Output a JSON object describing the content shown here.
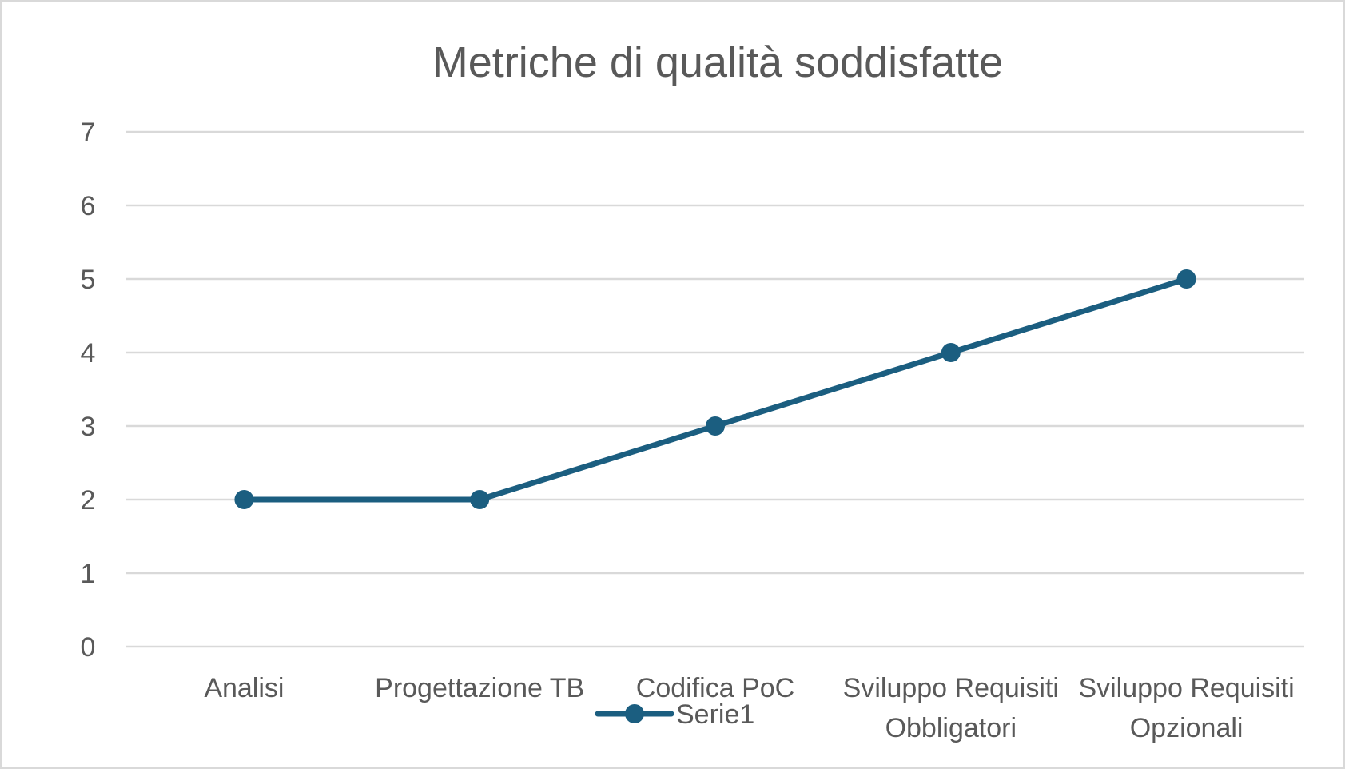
{
  "chart_data": {
    "type": "line",
    "title": "Metriche di qualità soddisfatte",
    "xlabel": "",
    "ylabel": "",
    "categories": [
      [
        "Analisi"
      ],
      [
        "Progettazione TB"
      ],
      [
        "Codifica PoC"
      ],
      [
        "Sviluppo Requisiti",
        "Obbligatori"
      ],
      [
        "Sviluppo Requisiti",
        "Opzionali"
      ]
    ],
    "series": [
      {
        "name": "Serie1",
        "values": [
          2,
          2,
          3,
          4,
          5
        ],
        "color": "#1b5e80"
      }
    ],
    "ylim": [
      0,
      7
    ],
    "yticks": [
      0,
      1,
      2,
      3,
      4,
      5,
      6,
      7
    ],
    "grid": true,
    "legend": "bottom"
  }
}
